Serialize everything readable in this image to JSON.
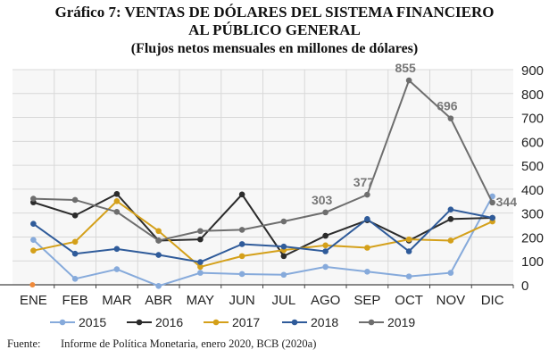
{
  "chart_data": {
    "type": "line",
    "title_lines": [
      "Gráfico 7: VENTAS DE DÓLARES DEL SISTEMA FINANCIERO",
      "AL PÚBLICO GENERAL",
      "(Flujos netos mensuales en millones de dólares)"
    ],
    "categories": [
      "ENE",
      "FEB",
      "MAR",
      "ABR",
      "MAY",
      "JUN",
      "JUL",
      "AGO",
      "SEP",
      "OCT",
      "NOV",
      "DIC"
    ],
    "ylim": [
      0,
      900
    ],
    "yticks": [
      0,
      100,
      200,
      300,
      400,
      500,
      600,
      700,
      800,
      900
    ],
    "y_axis_side": "right",
    "grid": true,
    "legend_position": "bottom",
    "series": [
      {
        "name": "2015",
        "color": "#86aadb",
        "values": [
          188,
          25,
          65,
          -5,
          50,
          45,
          42,
          75,
          55,
          35,
          50,
          370
        ]
      },
      {
        "name": "2016",
        "color": "#2b2b2b",
        "values": [
          345,
          290,
          380,
          185,
          190,
          378,
          120,
          205,
          270,
          185,
          275,
          280
        ]
      },
      {
        "name": "2017",
        "color": "#d4a01a",
        "values": [
          143,
          180,
          350,
          225,
          75,
          120,
          145,
          165,
          155,
          190,
          185,
          265
        ]
      },
      {
        "name": "2018",
        "color": "#2f5b9a",
        "values": [
          255,
          130,
          150,
          125,
          95,
          170,
          160,
          140,
          275,
          140,
          315,
          280
        ]
      },
      {
        "name": "2019",
        "color": "#6e6e6e",
        "values": [
          360,
          355,
          305,
          185,
          225,
          230,
          265,
          303,
          377,
          855,
          696,
          344
        ]
      }
    ],
    "annotations": [
      {
        "series": "2019",
        "category": "AGO",
        "label": "303"
      },
      {
        "series": "2019",
        "category": "SEP",
        "label": "377"
      },
      {
        "series": "2019",
        "category": "OCT",
        "label": "855"
      },
      {
        "series": "2019",
        "category": "NOV",
        "label": "696"
      },
      {
        "series": "2019",
        "category": "DIC",
        "label": "344"
      }
    ]
  },
  "footer": {
    "label": "Fuente:",
    "text": "Informe de Política Monetaria, enero 2020, BCB (2020a)"
  }
}
